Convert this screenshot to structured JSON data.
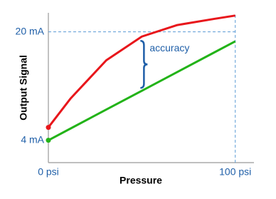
{
  "chart_data": {
    "type": "line",
    "x": [
      0,
      12,
      31,
      50,
      69,
      88.5,
      100
    ],
    "series": [
      {
        "color": "#e8161b",
        "values": [
          5.9,
          10.2,
          15.8,
          19.3,
          21.0,
          21.9,
          22.4
        ]
      },
      {
        "color": "#22b318",
        "values": [
          4,
          5.75,
          8.53,
          11.3,
          14.07,
          16.92,
          18.6
        ]
      }
    ],
    "xlim": [
      0,
      110
    ],
    "ylim": [
      0.7,
      22.8
    ],
    "xticks": [
      {
        "value": 0,
        "label": "0 psi"
      },
      {
        "value": 100,
        "label": "100 psi"
      }
    ],
    "yticks": [
      {
        "value": 4,
        "label": "4 mA"
      },
      {
        "value": 20,
        "label": "20 mA"
      }
    ],
    "x_label": "Pressure",
    "y_label": "Output Signal",
    "annotation": "accuracy"
  }
}
